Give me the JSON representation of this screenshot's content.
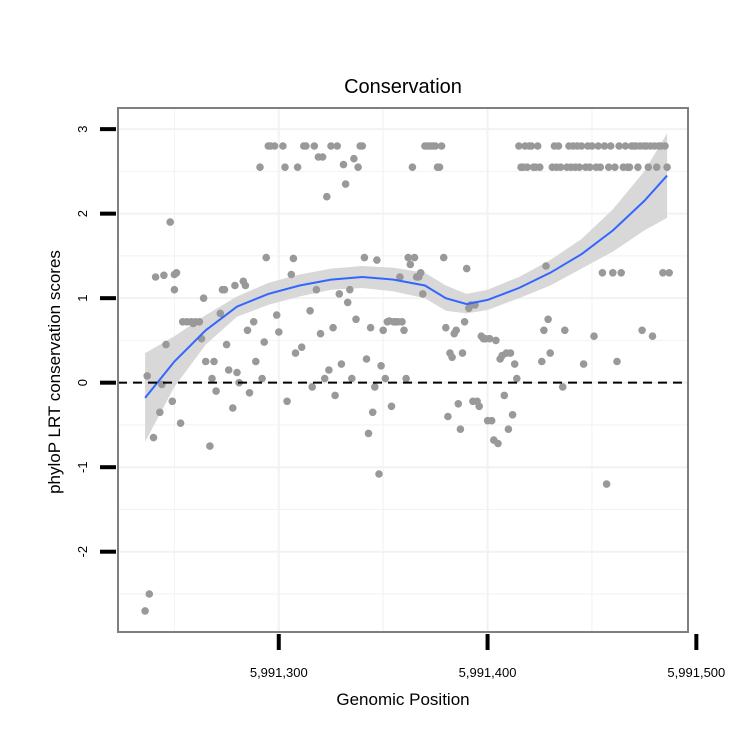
{
  "chart_data": {
    "type": "scatter",
    "title": "Conservation",
    "xlabel": "Genomic Position",
    "ylabel": "phyloP LRT conservation scores",
    "xlim": [
      5991223,
      5991496
    ],
    "ylim": [
      -2.95,
      3.25
    ],
    "x_ticks": [
      5991300,
      5991400,
      5991500
    ],
    "x_tick_labels": [
      "5,991,300",
      "5,991,400",
      "5,991,500"
    ],
    "y_ticks": [
      -2,
      -1,
      0,
      1,
      2,
      3
    ],
    "y_tick_labels": [
      "-2",
      "-1",
      "0",
      "1",
      "2",
      "3"
    ],
    "grid": true,
    "reference_line_y": 0,
    "colors": {
      "points": "#999999",
      "smooth_line": "#3366FF",
      "ribbon": "#d6d6d6",
      "grid": "#f2f2f2",
      "panel_border": "#7f7f7f"
    },
    "points": [
      [
        5991236,
        -2.7
      ],
      [
        5991238,
        -2.5
      ],
      [
        5991237,
        0.08
      ],
      [
        5991240,
        -0.65
      ],
      [
        5991241,
        1.25
      ],
      [
        5991243,
        -0.35
      ],
      [
        5991244,
        -0.02
      ],
      [
        5991246,
        0.45
      ],
      [
        5991245,
        1.27
      ],
      [
        5991248,
        1.9
      ],
      [
        5991249,
        -0.22
      ],
      [
        5991250,
        1.28
      ],
      [
        5991251,
        1.3
      ],
      [
        5991250,
        1.1
      ],
      [
        5991253,
        -0.48
      ],
      [
        5991254,
        0.72
      ],
      [
        5991256,
        0.72
      ],
      [
        5991258,
        0.72
      ],
      [
        5991259,
        0.7
      ],
      [
        5991260,
        0.72
      ],
      [
        5991262,
        0.72
      ],
      [
        5991263,
        0.52
      ],
      [
        5991264,
        1.0
      ],
      [
        5991265,
        0.25
      ],
      [
        5991267,
        -0.75
      ],
      [
        5991268,
        0.05
      ],
      [
        5991269,
        0.25
      ],
      [
        5991270,
        -0.1
      ],
      [
        5991272,
        0.82
      ],
      [
        5991273,
        1.1
      ],
      [
        5991274,
        1.1
      ],
      [
        5991275,
        0.45
      ],
      [
        5991276,
        0.15
      ],
      [
        5991278,
        -0.3
      ],
      [
        5991279,
        1.15
      ],
      [
        5991280,
        0.12
      ],
      [
        5991281,
        0.0
      ],
      [
        5991283,
        1.2
      ],
      [
        5991284,
        1.15
      ],
      [
        5991285,
        0.62
      ],
      [
        5991286,
        -0.12
      ],
      [
        5991288,
        0.72
      ],
      [
        5991289,
        0.25
      ],
      [
        5991291,
        2.55
      ],
      [
        5991292,
        0.05
      ],
      [
        5991293,
        0.48
      ],
      [
        5991294,
        1.48
      ],
      [
        5991295,
        2.8
      ],
      [
        5991296,
        2.8
      ],
      [
        5991298,
        2.8
      ],
      [
        5991299,
        0.8
      ],
      [
        5991300,
        0.6
      ],
      [
        5991302,
        2.8
      ],
      [
        5991303,
        2.55
      ],
      [
        5991304,
        -0.22
      ],
      [
        5991306,
        1.28
      ],
      [
        5991307,
        1.47
      ],
      [
        5991308,
        0.35
      ],
      [
        5991309,
        2.55
      ],
      [
        5991311,
        0.42
      ],
      [
        5991312,
        2.8
      ],
      [
        5991313,
        2.8
      ],
      [
        5991315,
        0.85
      ],
      [
        5991316,
        -0.05
      ],
      [
        5991317,
        2.8
      ],
      [
        5991318,
        1.1
      ],
      [
        5991319,
        2.67
      ],
      [
        5991320,
        0.58
      ],
      [
        5991321,
        2.67
      ],
      [
        5991322,
        0.05
      ],
      [
        5991323,
        2.2
      ],
      [
        5991324,
        0.15
      ],
      [
        5991325,
        2.8
      ],
      [
        5991326,
        0.65
      ],
      [
        5991327,
        -0.15
      ],
      [
        5991328,
        2.8
      ],
      [
        5991329,
        1.05
      ],
      [
        5991330,
        0.22
      ],
      [
        5991331,
        2.58
      ],
      [
        5991332,
        2.35
      ],
      [
        5991333,
        0.95
      ],
      [
        5991334,
        1.1
      ],
      [
        5991335,
        0.05
      ],
      [
        5991336,
        2.65
      ],
      [
        5991337,
        0.75
      ],
      [
        5991338,
        2.55
      ],
      [
        5991339,
        2.8
      ],
      [
        5991340,
        2.8
      ],
      [
        5991341,
        1.48
      ],
      [
        5991342,
        0.28
      ],
      [
        5991343,
        -0.6
      ],
      [
        5991344,
        0.65
      ],
      [
        5991345,
        -0.35
      ],
      [
        5991346,
        -0.05
      ],
      [
        5991347,
        1.45
      ],
      [
        5991348,
        -1.08
      ],
      [
        5991349,
        0.2
      ],
      [
        5991350,
        0.62
      ],
      [
        5991351,
        0.05
      ],
      [
        5991352,
        0.72
      ],
      [
        5991353,
        0.73
      ],
      [
        5991354,
        -0.28
      ],
      [
        5991355,
        0.72
      ],
      [
        5991356,
        0.72
      ],
      [
        5991357,
        0.72
      ],
      [
        5991358,
        1.25
      ],
      [
        5991359,
        0.72
      ],
      [
        5991360,
        0.62
      ],
      [
        5991361,
        0.05
      ],
      [
        5991362,
        1.48
      ],
      [
        5991363,
        1.4
      ],
      [
        5991364,
        2.55
      ],
      [
        5991365,
        1.48
      ],
      [
        5991366,
        1.25
      ],
      [
        5991367,
        1.25
      ],
      [
        5991368,
        1.3
      ],
      [
        5991369,
        1.05
      ],
      [
        5991370,
        2.8
      ],
      [
        5991371,
        2.8
      ],
      [
        5991372,
        2.8
      ],
      [
        5991373,
        2.8
      ],
      [
        5991374,
        2.8
      ],
      [
        5991375,
        2.8
      ],
      [
        5991376,
        2.55
      ],
      [
        5991377,
        2.55
      ],
      [
        5991378,
        2.8
      ],
      [
        5991379,
        1.48
      ],
      [
        5991380,
        0.65
      ],
      [
        5991381,
        -0.4
      ],
      [
        5991382,
        0.35
      ],
      [
        5991383,
        0.3
      ],
      [
        5991384,
        0.58
      ],
      [
        5991385,
        0.62
      ],
      [
        5991386,
        -0.25
      ],
      [
        5991387,
        -0.55
      ],
      [
        5991388,
        0.35
      ],
      [
        5991389,
        0.72
      ],
      [
        5991390,
        1.35
      ],
      [
        5991391,
        0.88
      ],
      [
        5991392,
        0.92
      ],
      [
        5991393,
        -0.22
      ],
      [
        5991394,
        0.92
      ],
      [
        5991395,
        -0.22
      ],
      [
        5991396,
        -0.28
      ],
      [
        5991397,
        0.55
      ],
      [
        5991398,
        0.52
      ],
      [
        5991399,
        0.52
      ],
      [
        5991400,
        -0.45
      ],
      [
        5991401,
        0.52
      ],
      [
        5991402,
        -0.45
      ],
      [
        5991403,
        -0.68
      ],
      [
        5991404,
        0.5
      ],
      [
        5991405,
        -0.72
      ],
      [
        5991406,
        0.28
      ],
      [
        5991407,
        0.32
      ],
      [
        5991408,
        -0.15
      ],
      [
        5991409,
        0.35
      ],
      [
        5991410,
        -0.55
      ],
      [
        5991411,
        0.35
      ],
      [
        5991412,
        -0.38
      ],
      [
        5991413,
        0.22
      ],
      [
        5991414,
        0.05
      ],
      [
        5991415,
        2.8
      ],
      [
        5991416,
        2.55
      ],
      [
        5991417,
        2.55
      ],
      [
        5991418,
        2.8
      ],
      [
        5991419,
        2.55
      ],
      [
        5991420,
        2.8
      ],
      [
        5991421,
        2.8
      ],
      [
        5991422,
        2.55
      ],
      [
        5991423,
        2.55
      ],
      [
        5991424,
        2.8
      ],
      [
        5991425,
        2.55
      ],
      [
        5991426,
        0.25
      ],
      [
        5991427,
        0.62
      ],
      [
        5991428,
        1.38
      ],
      [
        5991429,
        0.75
      ],
      [
        5991430,
        0.35
      ],
      [
        5991431,
        2.55
      ],
      [
        5991432,
        2.8
      ],
      [
        5991433,
        2.55
      ],
      [
        5991434,
        2.8
      ],
      [
        5991435,
        2.55
      ],
      [
        5991436,
        -0.05
      ],
      [
        5991437,
        0.62
      ],
      [
        5991438,
        2.55
      ],
      [
        5991439,
        2.8
      ],
      [
        5991440,
        2.55
      ],
      [
        5991441,
        2.8
      ],
      [
        5991442,
        2.55
      ],
      [
        5991443,
        2.8
      ],
      [
        5991444,
        2.55
      ],
      [
        5991445,
        2.8
      ],
      [
        5991446,
        0.22
      ],
      [
        5991447,
        2.55
      ],
      [
        5991448,
        2.8
      ],
      [
        5991449,
        2.55
      ],
      [
        5991450,
        2.8
      ],
      [
        5991451,
        0.55
      ],
      [
        5991452,
        2.55
      ],
      [
        5991453,
        2.8
      ],
      [
        5991454,
        2.55
      ],
      [
        5991455,
        1.3
      ],
      [
        5991456,
        2.8
      ],
      [
        5991457,
        -1.2
      ],
      [
        5991458,
        2.55
      ],
      [
        5991459,
        2.8
      ],
      [
        5991460,
        1.3
      ],
      [
        5991461,
        2.55
      ],
      [
        5991462,
        0.25
      ],
      [
        5991463,
        2.8
      ],
      [
        5991464,
        1.3
      ],
      [
        5991465,
        2.55
      ],
      [
        5991466,
        2.8
      ],
      [
        5991467,
        2.55
      ],
      [
        5991468,
        2.55
      ],
      [
        5991469,
        2.8
      ],
      [
        5991470,
        2.8
      ],
      [
        5991471,
        2.8
      ],
      [
        5991472,
        2.55
      ],
      [
        5991473,
        2.8
      ],
      [
        5991474,
        0.62
      ],
      [
        5991475,
        2.8
      ],
      [
        5991476,
        2.8
      ],
      [
        5991477,
        2.55
      ],
      [
        5991478,
        2.8
      ],
      [
        5991479,
        0.55
      ],
      [
        5991480,
        2.8
      ],
      [
        5991481,
        2.55
      ],
      [
        5991482,
        2.8
      ],
      [
        5991483,
        2.8
      ],
      [
        5991484,
        1.3
      ],
      [
        5991485,
        2.8
      ],
      [
        5991486,
        2.55
      ],
      [
        5991487,
        1.3
      ]
    ],
    "smooth": {
      "x": [
        5991236,
        5991250,
        5991265,
        5991280,
        5991295,
        5991310,
        5991325,
        5991340,
        5991355,
        5991370,
        5991380,
        5991390,
        5991400,
        5991415,
        5991430,
        5991445,
        5991460,
        5991475,
        5991486
      ],
      "y": [
        -0.18,
        0.25,
        0.62,
        0.9,
        1.05,
        1.15,
        1.22,
        1.25,
        1.22,
        1.15,
        1.0,
        0.93,
        0.98,
        1.12,
        1.3,
        1.52,
        1.8,
        2.15,
        2.45
      ],
      "lower": [
        -0.7,
        -0.05,
        0.45,
        0.78,
        0.92,
        1.02,
        1.1,
        1.12,
        1.08,
        1.0,
        0.85,
        0.82,
        0.86,
        1.0,
        1.15,
        1.35,
        1.55,
        1.8,
        1.95
      ],
      "upper": [
        0.35,
        0.55,
        0.8,
        1.02,
        1.18,
        1.28,
        1.35,
        1.38,
        1.36,
        1.3,
        1.15,
        1.05,
        1.1,
        1.25,
        1.45,
        1.7,
        2.05,
        2.5,
        2.95
      ]
    }
  }
}
